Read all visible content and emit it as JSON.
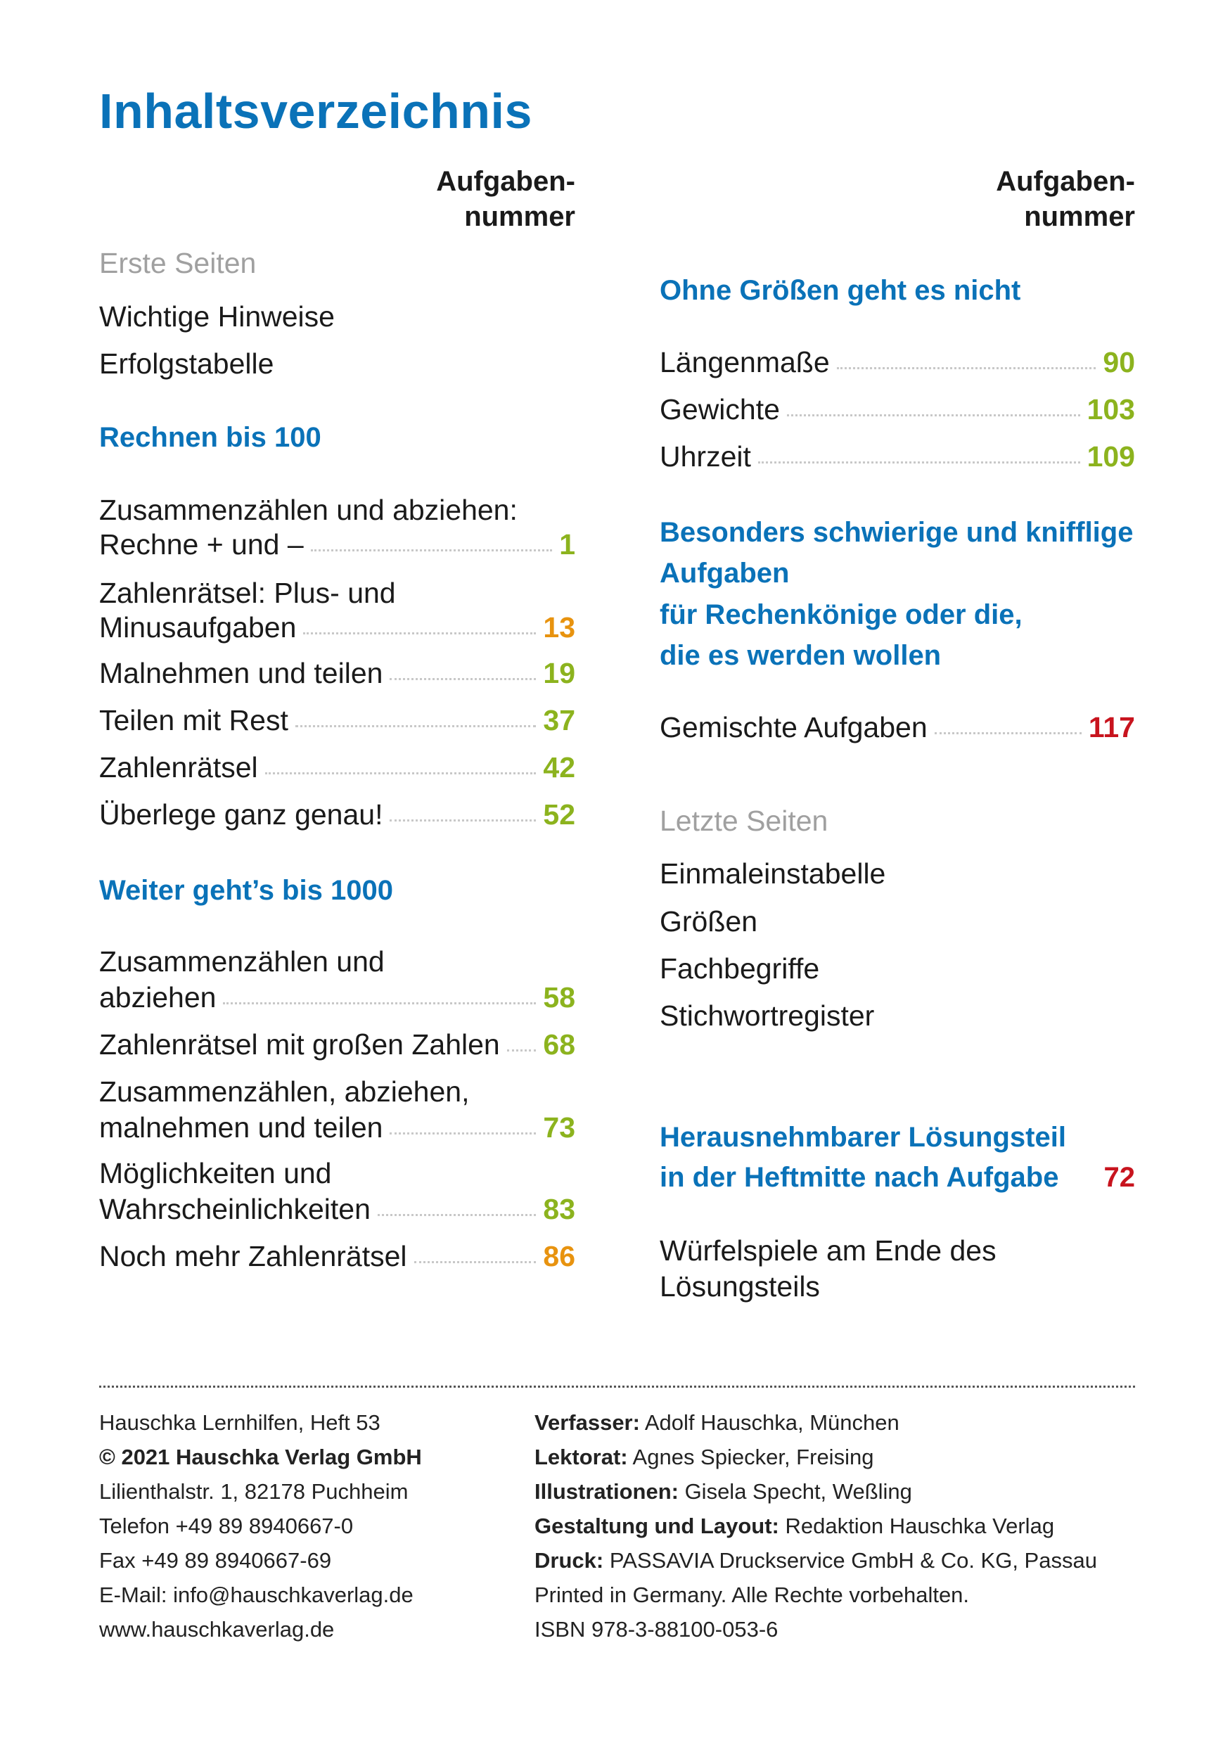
{
  "title": "Inhaltsverzeichnis",
  "column_header": [
    "Aufgaben-",
    "nummer"
  ],
  "colors": {
    "blue": "#0a72b8",
    "green": "#8cb31e",
    "orange": "#e8930f",
    "red": "#c8141e",
    "gray": "#a0a0a0"
  },
  "left": {
    "erste_seiten": {
      "label": "Erste Seiten",
      "items": [
        "Wichtige Hinweise",
        "Erfolgstabelle"
      ]
    },
    "rechnen_bis_100": {
      "label": "Rechnen bis 100",
      "entries": [
        {
          "lines": [
            "Zusammenzählen und abziehen:",
            "Rechne + und –"
          ],
          "number": "1",
          "color": "green"
        },
        {
          "lines": [
            "Zahlenrätsel: Plus- und",
            "Minusaufgaben"
          ],
          "number": "13",
          "color": "orange"
        },
        {
          "lines": [
            "Malnehmen und teilen"
          ],
          "number": "19",
          "color": "green"
        },
        {
          "lines": [
            "Teilen mit Rest"
          ],
          "number": "37",
          "color": "green"
        },
        {
          "lines": [
            "Zahlenrätsel"
          ],
          "number": "42",
          "color": "green"
        },
        {
          "lines": [
            "Überlege ganz genau!"
          ],
          "number": "52",
          "color": "green"
        }
      ]
    },
    "weiter_bis_1000": {
      "label": "Weiter geht’s bis 1000",
      "entries": [
        {
          "lines": [
            "Zusammenzählen und",
            "abziehen"
          ],
          "number": "58",
          "color": "green"
        },
        {
          "lines": [
            "Zahlenrätsel mit großen Zahlen"
          ],
          "number": "68",
          "color": "green"
        },
        {
          "lines": [
            "Zusammenzählen, abziehen,",
            "malnehmen und teilen"
          ],
          "number": "73",
          "color": "green"
        },
        {
          "lines": [
            "Möglichkeiten und",
            "Wahrscheinlichkeiten"
          ],
          "number": "83",
          "color": "green"
        },
        {
          "lines": [
            "Noch mehr Zahlenrätsel"
          ],
          "number": "86",
          "color": "orange"
        }
      ]
    }
  },
  "right": {
    "groessen": {
      "label": "Ohne Größen geht es nicht",
      "entries": [
        {
          "lines": [
            "Längenmaße"
          ],
          "number": "90",
          "color": "green"
        },
        {
          "lines": [
            "Gewichte"
          ],
          "number": "103",
          "color": "green"
        },
        {
          "lines": [
            "Uhrzeit"
          ],
          "number": "109",
          "color": "green"
        }
      ]
    },
    "schwierig": {
      "label_lines": [
        "Besonders schwierige und knifflige",
        "Aufgaben",
        "für Rechenkönige oder die,",
        "die es werden wollen"
      ],
      "entries": [
        {
          "lines": [
            "Gemischte Aufgaben"
          ],
          "number": "117",
          "color": "red"
        }
      ]
    },
    "letzte_seiten": {
      "label": "Letzte Seiten",
      "items": [
        "Einmaleinstabelle",
        "Größen",
        "Fachbegriffe",
        "Stichwortregister"
      ]
    },
    "loesungsteil": {
      "label_lines": [
        "Herausnehmbarer Lösungsteil",
        "in der Heftmitte nach Aufgabe"
      ],
      "number": "72",
      "color": "red",
      "note_lines": [
        "Würfelspiele am Ende des",
        "Lösungsteils"
      ]
    }
  },
  "footer": {
    "left": [
      "Hauschka Lernhilfen, Heft 53",
      "© 2021 Hauschka Verlag GmbH",
      "Lilienthalstr. 1, 82178 Puchheim",
      "Telefon +49 89 8940667-0",
      "Fax +49 89 8940667-69",
      "E-Mail: info@hauschkaverlag.de",
      "www.hauschkaverlag.de"
    ],
    "right": [
      {
        "label": "Verfasser:",
        "value": " Adolf Hauschka, München"
      },
      {
        "label": "Lektorat:",
        "value": " Agnes Spiecker, Freising"
      },
      {
        "label": "Illustrationen:",
        "value": " Gisela Specht, Weßling"
      },
      {
        "label": "Gestaltung und Layout:",
        "value": " Redaktion Hauschka Verlag"
      },
      {
        "label": "Druck:",
        "value": " PASSAVIA Druckservice GmbH & Co. KG, Passau"
      },
      {
        "label": "",
        "value": "Printed in Germany. Alle Rechte vorbehalten."
      },
      {
        "label": "",
        "value": "ISBN 978-3-88100-053-6"
      }
    ]
  }
}
